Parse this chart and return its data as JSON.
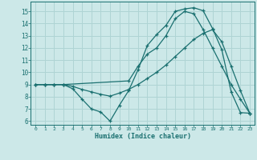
{
  "xlabel": "Humidex (Indice chaleur)",
  "background_color": "#cce8e8",
  "grid_color": "#afd4d4",
  "line_color": "#1a7070",
  "xlim": [
    -0.5,
    23.5
  ],
  "ylim": [
    5.7,
    15.8
  ],
  "xticks": [
    0,
    1,
    2,
    3,
    4,
    5,
    6,
    7,
    8,
    9,
    10,
    11,
    12,
    13,
    14,
    15,
    16,
    17,
    18,
    19,
    20,
    21,
    22,
    23
  ],
  "yticks": [
    6,
    7,
    8,
    9,
    10,
    11,
    12,
    13,
    14,
    15
  ],
  "curve1_x": [
    0,
    1,
    2,
    3,
    4,
    5,
    6,
    7,
    8,
    9,
    10,
    11,
    12,
    13,
    14,
    15,
    16,
    17,
    18,
    19,
    20,
    21,
    22,
    23
  ],
  "curve1_y": [
    9.0,
    9.0,
    9.0,
    9.0,
    8.65,
    7.8,
    7.0,
    6.75,
    6.0,
    7.3,
    8.5,
    10.2,
    12.2,
    13.1,
    13.85,
    15.0,
    15.2,
    15.3,
    15.05,
    13.6,
    11.85,
    8.4,
    6.7,
    6.65
  ],
  "curve2_x": [
    0,
    1,
    2,
    3,
    10,
    11,
    12,
    13,
    14,
    15,
    16,
    17,
    18,
    19,
    20,
    21,
    22,
    23
  ],
  "curve2_y": [
    9.0,
    9.0,
    9.0,
    9.0,
    9.3,
    10.5,
    11.5,
    12.0,
    13.0,
    14.4,
    15.0,
    14.8,
    13.5,
    12.0,
    10.5,
    9.0,
    7.8,
    6.65
  ],
  "curve3_x": [
    0,
    1,
    2,
    3,
    4,
    5,
    6,
    7,
    8,
    9,
    10,
    11,
    12,
    13,
    14,
    15,
    16,
    17,
    18,
    19,
    20,
    21,
    22,
    23
  ],
  "curve3_y": [
    9.0,
    9.0,
    9.0,
    9.0,
    8.85,
    8.6,
    8.4,
    8.2,
    8.05,
    8.3,
    8.6,
    9.0,
    9.5,
    10.0,
    10.6,
    11.3,
    12.0,
    12.7,
    13.2,
    13.5,
    12.5,
    10.5,
    8.5,
    6.65
  ]
}
